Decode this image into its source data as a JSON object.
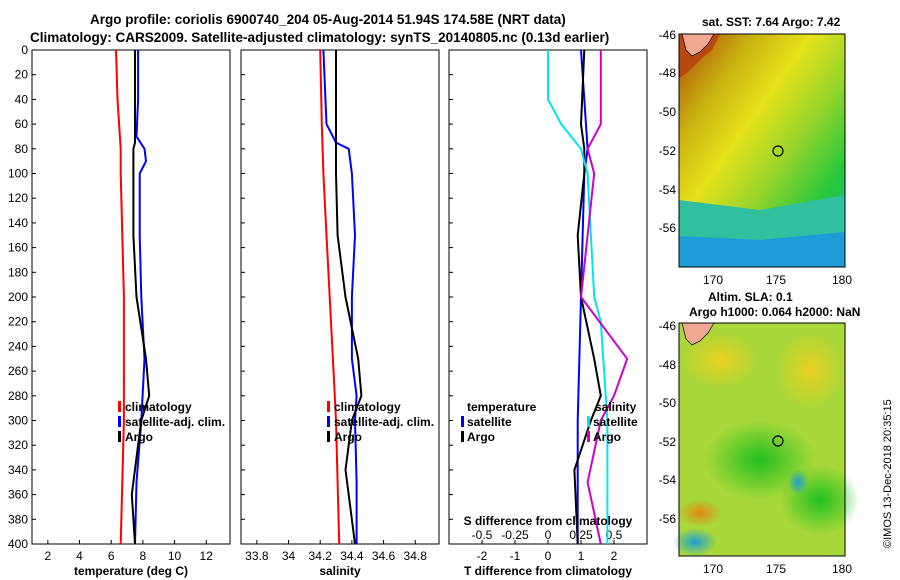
{
  "header": {
    "title_line1": "Argo profile: coriolis 6900740_204 05-Aug-2014 51.94S 174.58E (NRT data)",
    "title_line2": "Climatology: CARS2009. Satellite-adjusted climatology: synTS_20140805.nc (0.13d earlier)"
  },
  "colors": {
    "climatology": "#ff0000",
    "satellite": "#0000ff",
    "argo": "#000000",
    "t_sat": "#00e5ee",
    "s_sat": "#cc00cc"
  },
  "chart_data": [
    {
      "id": "temperature",
      "type": "line",
      "xlabel": "temperature (deg C)",
      "ylabel": "",
      "xlim": [
        1,
        13.5
      ],
      "ylim": [
        400,
        0
      ],
      "xticks": [
        2,
        4,
        6,
        8,
        10,
        12
      ],
      "yticks": [
        0,
        20,
        40,
        60,
        80,
        100,
        120,
        140,
        160,
        180,
        200,
        220,
        240,
        260,
        280,
        300,
        320,
        340,
        360,
        380,
        400
      ],
      "legend": [
        "climatology",
        "satellite-adj. clim.",
        "Argo"
      ],
      "series": [
        {
          "name": "climatology",
          "color": "#ff0000",
          "depth": [
            0,
            40,
            80,
            100,
            150,
            200,
            250,
            300,
            350,
            400
          ],
          "values": [
            6.3,
            6.4,
            6.6,
            6.6,
            6.7,
            6.8,
            6.8,
            6.8,
            6.7,
            6.6
          ]
        },
        {
          "name": "satellite-adj. clim.",
          "color": "#0000ff",
          "depth": [
            0,
            40,
            70,
            80,
            90,
            100,
            150,
            200,
            250,
            300,
            350,
            400
          ],
          "values": [
            7.7,
            7.7,
            7.6,
            8.1,
            8.2,
            7.8,
            7.8,
            7.9,
            8.1,
            7.9,
            7.6,
            7.5
          ]
        },
        {
          "name": "Argo",
          "color": "#000000",
          "depth": [
            0,
            40,
            75,
            80,
            150,
            200,
            250,
            280,
            300,
            330,
            360,
            400
          ],
          "values": [
            7.5,
            7.5,
            7.5,
            7.4,
            7.4,
            7.6,
            8.2,
            8.4,
            7.9,
            7.6,
            7.3,
            7.5
          ]
        }
      ]
    },
    {
      "id": "salinity",
      "type": "line",
      "xlabel": "salinity",
      "xlim": [
        33.7,
        34.95
      ],
      "ylim": [
        400,
        0
      ],
      "xticks": [
        33.8,
        34,
        34.2,
        34.4,
        34.6,
        34.8
      ],
      "xticklabels": [
        "33.8",
        "34",
        "34.2",
        "34.4",
        "34.6",
        "34.8"
      ],
      "legend": [
        "climatology",
        "satellite-adj. clim.",
        "Argo"
      ],
      "series": [
        {
          "name": "climatology",
          "color": "#ff0000",
          "depth": [
            0,
            60,
            100,
            150,
            200,
            250,
            300,
            350,
            400
          ],
          "values": [
            34.2,
            34.21,
            34.22,
            34.24,
            34.26,
            34.28,
            34.3,
            34.31,
            34.32
          ]
        },
        {
          "name": "satellite-adj. clim.",
          "color": "#0000ff",
          "depth": [
            0,
            60,
            75,
            80,
            100,
            150,
            200,
            250,
            280,
            300,
            350,
            400
          ],
          "values": [
            34.22,
            34.24,
            34.3,
            34.38,
            34.4,
            34.42,
            34.4,
            34.4,
            34.43,
            34.42,
            34.43,
            34.43
          ]
        },
        {
          "name": "Argo",
          "color": "#000000",
          "depth": [
            0,
            80,
            100,
            150,
            200,
            250,
            280,
            300,
            340,
            360,
            400
          ],
          "values": [
            34.3,
            34.3,
            34.3,
            34.31,
            34.36,
            34.44,
            34.46,
            34.4,
            34.36,
            34.38,
            34.42
          ]
        }
      ]
    },
    {
      "id": "difference",
      "type": "line",
      "xlabel": "T difference from climatology",
      "xlim": [
        -3,
        3
      ],
      "ylim": [
        400,
        0
      ],
      "xticks": [
        -2,
        -1,
        0,
        1,
        2
      ],
      "xticklabels": [
        "-2",
        "-1",
        "0",
        "1",
        "2"
      ],
      "top_axis_label": "S difference from climatology",
      "top_ticks": [
        -0.5,
        -0.25,
        0,
        0.25,
        0.5
      ],
      "top_ticklabels": [
        "-0.5",
        "-0.25",
        "0",
        "0.25",
        "0.5"
      ],
      "legend_left": {
        "title": "temperature",
        "entries": [
          "satellite",
          "Argo"
        ]
      },
      "legend_right": {
        "title": "salinity",
        "entries": [
          "satellite",
          "Argo"
        ]
      },
      "series": [
        {
          "name": "temperature satellite",
          "color": "#0000ff",
          "depth": [
            0,
            80,
            100,
            200,
            300,
            400
          ],
          "values": [
            1.0,
            1.2,
            1.1,
            1.0,
            0.9,
            0.9
          ]
        },
        {
          "name": "temperature Argo",
          "color": "#000000",
          "depth": [
            0,
            60,
            80,
            100,
            150,
            200,
            250,
            280,
            300,
            340,
            400
          ],
          "values": [
            1.1,
            1.0,
            1.1,
            1.1,
            0.9,
            1.0,
            1.4,
            1.6,
            1.3,
            0.8,
            0.9
          ]
        },
        {
          "name": "salinity satellite",
          "color": "#00e5ee",
          "depth": [
            0,
            40,
            60,
            80,
            100,
            200,
            220,
            300,
            400
          ],
          "values": [
            0.0,
            0.0,
            0.1,
            0.25,
            0.3,
            0.35,
            0.4,
            0.45,
            0.45
          ]
        },
        {
          "name": "salinity Argo",
          "color": "#cc00cc",
          "depth": [
            0,
            60,
            80,
            100,
            150,
            200,
            250,
            280,
            300,
            350,
            400
          ],
          "values": [
            0.4,
            0.4,
            0.3,
            0.35,
            0.3,
            0.25,
            0.6,
            0.5,
            0.4,
            0.3,
            0.4
          ]
        }
      ]
    }
  ],
  "maps": {
    "sst": {
      "title": "sat. SST: 7.64 Argo: 7.42",
      "yticks": [
        "-46",
        "-48",
        "-50",
        "-52",
        "-54",
        "-56"
      ],
      "xticks": [
        "170",
        "175",
        "180"
      ]
    },
    "sla": {
      "title_line1": "Altim. SLA: 0.1",
      "title_line2": "Argo h1000: 0.064 h2000: NaN",
      "yticks": [
        "-46",
        "-48",
        "-50",
        "-52",
        "-54",
        "-56"
      ],
      "xticks": [
        "170",
        "175",
        "180"
      ]
    }
  },
  "credit": "©IMOS 13-Dec-2018 20:35:15"
}
